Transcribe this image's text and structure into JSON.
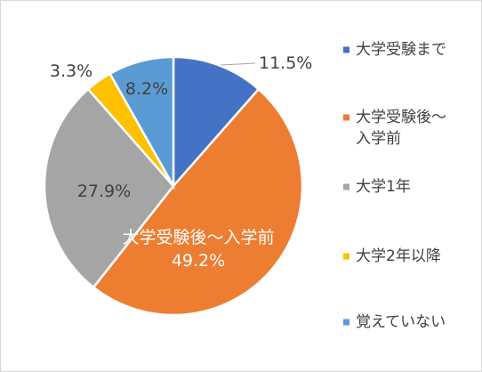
{
  "chart_data": {
    "type": "pie",
    "title": "",
    "start_angle_deg": 0,
    "direction": "clockwise",
    "slices": [
      {
        "name": "大学受験まで",
        "legend_lines": [
          "大学受験まで"
        ],
        "value": 11.5,
        "label": "11.5%",
        "color": "#4472c4"
      },
      {
        "name": "大学受験後～入学前",
        "legend_lines": [
          "大学受験後～",
          "入学前"
        ],
        "value": 49.2,
        "label": "49.2%",
        "category_label": "大学受験後～入学前",
        "color": "#ed7d31"
      },
      {
        "name": "大学1年",
        "legend_lines": [
          "大学1年"
        ],
        "value": 27.9,
        "label": "27.9%",
        "color": "#a5a5a5"
      },
      {
        "name": "大学2年以降",
        "legend_lines": [
          "大学2年以降"
        ],
        "value": 3.3,
        "label": "3.3%",
        "color": "#ffc000"
      },
      {
        "name": "覚えていない",
        "legend_lines": [
          "覚えていない"
        ],
        "value": 8.2,
        "label": "8.2%",
        "color": "#5b9bd5"
      }
    ],
    "legend_placement": "right",
    "label_text_color": "#404040",
    "inside_label_color": "#ffffff"
  }
}
